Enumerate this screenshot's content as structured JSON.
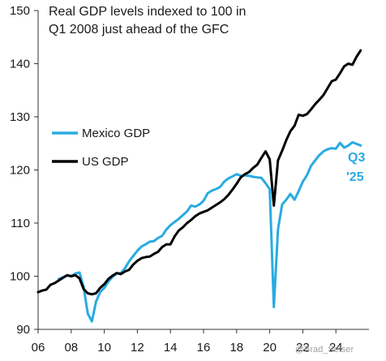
{
  "chart_data": {
    "type": "line",
    "title_lines": [
      "Real GDP levels indexed to 100 in",
      "Q1 2008 just ahead of the GFC"
    ],
    "xlabel": "",
    "ylabel": "",
    "xlim": [
      2006,
      2026
    ],
    "ylim": [
      90,
      150
    ],
    "yticks": [
      90,
      100,
      110,
      120,
      130,
      140,
      150
    ],
    "xticks": [
      {
        "value": 2006,
        "label": "06"
      },
      {
        "value": 2008,
        "label": "08"
      },
      {
        "value": 2010,
        "label": "10"
      },
      {
        "value": 2012,
        "label": "12"
      },
      {
        "value": 2014,
        "label": "14"
      },
      {
        "value": 2016,
        "label": "16"
      },
      {
        "value": 2018,
        "label": "18"
      },
      {
        "value": 2020,
        "label": "20"
      },
      {
        "value": 2022,
        "label": "22"
      },
      {
        "value": 2024,
        "label": "24"
      }
    ],
    "grid": false,
    "legend_position": "middle-left",
    "series": [
      {
        "name": "Mexico GDP",
        "color": "#29abe2",
        "x": [
          2007.25,
          2007.5,
          2007.75,
          2008.0,
          2008.25,
          2008.5,
          2008.75,
          2009.0,
          2009.25,
          2009.5,
          2009.75,
          2010.0,
          2010.25,
          2010.5,
          2010.75,
          2011.0,
          2011.25,
          2011.5,
          2011.75,
          2012.0,
          2012.25,
          2012.5,
          2012.75,
          2013.0,
          2013.25,
          2013.5,
          2013.75,
          2014.0,
          2014.25,
          2014.5,
          2014.75,
          2015.0,
          2015.25,
          2015.5,
          2015.75,
          2016.0,
          2016.25,
          2016.5,
          2016.75,
          2017.0,
          2017.25,
          2017.5,
          2017.75,
          2018.0,
          2018.25,
          2018.5,
          2018.75,
          2019.0,
          2019.25,
          2019.5,
          2019.75,
          2020.0,
          2020.25,
          2020.5,
          2020.75,
          2021.0,
          2021.25,
          2021.5,
          2021.75,
          2022.0,
          2022.25,
          2022.5,
          2022.75,
          2023.0,
          2023.25,
          2023.5,
          2023.75,
          2024.0,
          2024.25,
          2024.5,
          2024.75,
          2025.0,
          2025.25,
          2025.5
        ],
        "values": [
          99.5,
          99.8,
          100.1,
          100.0,
          100.5,
          100.7,
          98.0,
          93.0,
          91.5,
          95.2,
          97.0,
          97.8,
          99.0,
          99.9,
          100.5,
          100.6,
          101.5,
          102.8,
          103.8,
          104.8,
          105.6,
          106.0,
          106.5,
          106.6,
          107.2,
          107.6,
          108.8,
          109.6,
          110.2,
          110.8,
          111.5,
          112.2,
          113.3,
          113.1,
          113.5,
          114.2,
          115.6,
          116.1,
          116.4,
          116.8,
          117.8,
          118.4,
          118.8,
          119.2,
          118.9,
          119.0,
          118.9,
          118.7,
          118.6,
          118.5,
          117.5,
          116.4,
          94.2,
          108.8,
          113.5,
          114.4,
          115.5,
          114.4,
          116.0,
          117.8,
          119.0,
          120.8,
          121.8,
          122.8,
          123.5,
          123.9,
          124.1,
          124.0,
          125.1,
          124.2,
          124.6,
          125.2,
          124.9,
          124.6
        ]
      },
      {
        "name": "US GDP",
        "color": "#000000",
        "x": [
          2006.0,
          2006.25,
          2006.5,
          2006.75,
          2007.0,
          2007.25,
          2007.5,
          2007.75,
          2008.0,
          2008.25,
          2008.5,
          2008.75,
          2009.0,
          2009.25,
          2009.5,
          2009.75,
          2010.0,
          2010.25,
          2010.5,
          2010.75,
          2011.0,
          2011.25,
          2011.5,
          2011.75,
          2012.0,
          2012.25,
          2012.5,
          2012.75,
          2013.0,
          2013.25,
          2013.5,
          2013.75,
          2014.0,
          2014.25,
          2014.5,
          2014.75,
          2015.0,
          2015.25,
          2015.5,
          2015.75,
          2016.0,
          2016.25,
          2016.5,
          2016.75,
          2017.0,
          2017.25,
          2017.5,
          2017.75,
          2018.0,
          2018.25,
          2018.5,
          2018.75,
          2019.0,
          2019.25,
          2019.5,
          2019.75,
          2020.0,
          2020.25,
          2020.5,
          2020.75,
          2021.0,
          2021.25,
          2021.5,
          2021.75,
          2022.0,
          2022.25,
          2022.5,
          2022.75,
          2023.0,
          2023.25,
          2023.5,
          2023.75,
          2024.0,
          2024.25,
          2024.5,
          2024.75,
          2025.0,
          2025.25,
          2025.5
        ],
        "values": [
          97.0,
          97.3,
          97.5,
          98.4,
          98.7,
          99.2,
          99.7,
          100.2,
          100.0,
          100.2,
          99.6,
          97.6,
          96.8,
          96.6,
          96.8,
          97.8,
          98.5,
          99.5,
          100.1,
          100.6,
          100.4,
          100.9,
          101.2,
          102.2,
          102.9,
          103.4,
          103.6,
          103.7,
          104.2,
          104.6,
          105.5,
          106.0,
          106.0,
          107.5,
          108.6,
          109.2,
          110.0,
          110.6,
          111.3,
          111.8,
          112.1,
          112.4,
          112.9,
          113.4,
          113.9,
          114.5,
          115.3,
          116.3,
          117.4,
          118.6,
          119.2,
          119.6,
          120.4,
          121.0,
          122.3,
          123.5,
          122.0,
          113.3,
          121.8,
          123.6,
          125.6,
          127.3,
          128.3,
          130.4,
          130.2,
          130.5,
          131.4,
          132.4,
          133.2,
          134.1,
          135.4,
          136.7,
          137.0,
          138.2,
          139.5,
          140.0,
          139.8,
          141.3,
          142.5
        ]
      }
    ],
    "annotation": {
      "lines": [
        "Q3",
        "'25"
      ],
      "color": "#29abe2"
    }
  },
  "watermark": "@Brad_Setser"
}
